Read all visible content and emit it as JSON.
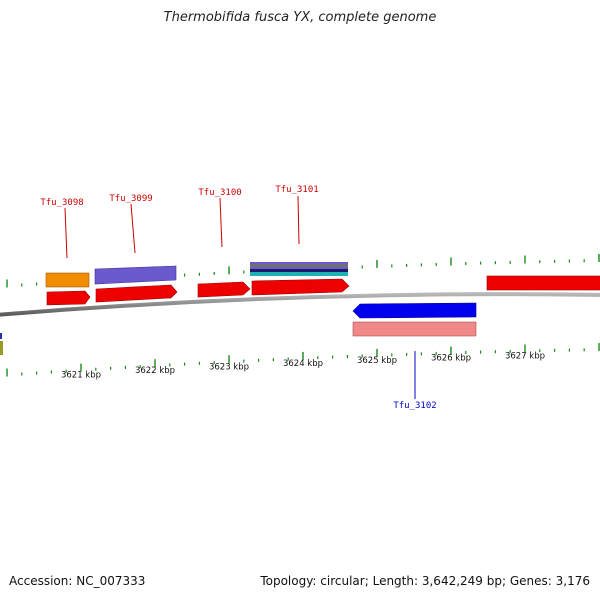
{
  "title": "Thermobifida fusca YX, complete genome",
  "footer": {
    "accession_label": "Accession:",
    "accession": "NC_007333",
    "topology_label": "Topology:",
    "topology": "circular",
    "length_label": "Length:",
    "length": "3,642,249 bp",
    "genes_label": "Genes:",
    "genes": "3,176"
  },
  "backbone_color": "#808080",
  "tick_color": "#1a8a1a",
  "scale_labels": [
    {
      "kbp": 3621,
      "text": "3621 kbp"
    },
    {
      "kbp": 3622,
      "text": "3622 kbp"
    },
    {
      "kbp": 3623,
      "text": "3623 kbp"
    },
    {
      "kbp": 3624,
      "text": "3624 kbp"
    },
    {
      "kbp": 3625,
      "text": "3625 kbp"
    },
    {
      "kbp": 3626,
      "text": "3626 kbp"
    },
    {
      "kbp": 3627,
      "text": "3627 kbp"
    }
  ],
  "gene_labels": [
    {
      "name": "Tfu_3098",
      "strand": "forward",
      "color": "#cc0000"
    },
    {
      "name": "Tfu_3099",
      "strand": "forward",
      "color": "#cc0000"
    },
    {
      "name": "Tfu_3100",
      "strand": "forward",
      "color": "#cc0000"
    },
    {
      "name": "Tfu_3101",
      "strand": "forward",
      "color": "#cc0000"
    },
    {
      "name": "Tfu_3102",
      "strand": "reverse",
      "color": "#0000cc"
    }
  ],
  "feature_colors": {
    "forward_cds": "#ee0000",
    "reverse_cds": "#0000ee",
    "reverse_annotation": "#f08888",
    "orange_feature": "#f08c00",
    "purple_feature": "#6a5acd",
    "teal_feature": "#20b2b2"
  }
}
